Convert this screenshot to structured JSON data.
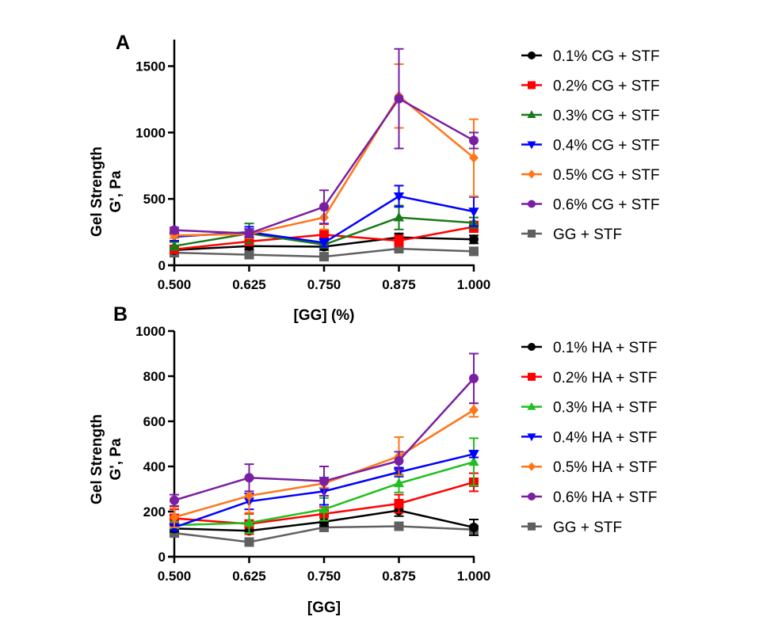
{
  "chart_data": [
    {
      "type": "line",
      "panel_label": "A",
      "title": "",
      "xlabel": "[GG] (%)",
      "ylabel_line1": "Gel Strength",
      "ylabel_line2": "G', Pa",
      "x": [
        0.5,
        0.625,
        0.75,
        0.875,
        1.0
      ],
      "x_tick_labels": [
        "0.500",
        "0.625",
        "0.750",
        "0.875",
        "1.000"
      ],
      "y_ticks": [
        0,
        500,
        1000,
        1500
      ],
      "ylim": [
        0,
        1700
      ],
      "legend_position": "right",
      "grid": false,
      "series": [
        {
          "name": "0.1% CG + STF",
          "color": "#000000",
          "marker": "circle",
          "values": [
            115,
            145,
            140,
            210,
            195
          ],
          "errors": [
            20,
            25,
            25,
            30,
            30
          ]
        },
        {
          "name": "0.2% CG + STF",
          "color": "#ff0000",
          "marker": "square",
          "values": [
            120,
            180,
            230,
            185,
            290
          ],
          "errors": [
            20,
            30,
            80,
            40,
            40
          ]
        },
        {
          "name": "0.3% CG + STF",
          "color": "#1a7a1a",
          "marker": "triangle-up",
          "values": [
            145,
            240,
            155,
            360,
            320
          ],
          "errors": [
            30,
            75,
            20,
            90,
            40
          ]
        },
        {
          "name": "0.4% CG + STF",
          "color": "#0000ff",
          "marker": "triangle-down",
          "values": [
            215,
            250,
            170,
            520,
            405
          ],
          "errors": [
            30,
            40,
            30,
            80,
            110
          ]
        },
        {
          "name": "0.5% CG + STF",
          "color": "#ff7518",
          "marker": "diamond",
          "values": [
            225,
            235,
            360,
            1275,
            810
          ],
          "errors": [
            20,
            30,
            90,
            240,
            290
          ]
        },
        {
          "name": "0.6% CG + STF",
          "color": "#7a1fa2",
          "marker": "circle",
          "values": [
            265,
            240,
            440,
            1255,
            940
          ],
          "errors": [
            20,
            30,
            125,
            375,
            60
          ]
        },
        {
          "name": "GG + STF",
          "color": "#606060",
          "marker": "square",
          "values": [
            95,
            80,
            65,
            125,
            105
          ],
          "errors": [
            15,
            15,
            10,
            20,
            15
          ]
        }
      ]
    },
    {
      "type": "line",
      "panel_label": "B",
      "title": "",
      "xlabel": "[GG]",
      "ylabel_line1": "Gel Strength",
      "ylabel_line2": "G', Pa",
      "x": [
        0.5,
        0.625,
        0.75,
        0.875,
        1.0
      ],
      "x_tick_labels": [
        "0.500",
        "0.625",
        "0.750",
        "0.875",
        "1.000"
      ],
      "y_ticks": [
        0,
        200,
        400,
        600,
        800,
        1000
      ],
      "ylim": [
        0,
        1000
      ],
      "legend_position": "right",
      "grid": false,
      "series": [
        {
          "name": "0.1% HA + STF",
          "color": "#000000",
          "marker": "circle",
          "values": [
            125,
            115,
            155,
            205,
            130
          ],
          "errors": [
            15,
            15,
            20,
            25,
            35
          ]
        },
        {
          "name": "0.2% HA + STF",
          "color": "#ff0000",
          "marker": "square",
          "values": [
            170,
            145,
            190,
            235,
            330
          ],
          "errors": [
            40,
            45,
            30,
            40,
            40
          ]
        },
        {
          "name": "0.3% HA + STF",
          "color": "#1fbf1f",
          "marker": "triangle-up",
          "values": [
            140,
            150,
            210,
            325,
            420
          ],
          "errors": [
            15,
            45,
            50,
            40,
            105
          ]
        },
        {
          "name": "0.4% HA + STF",
          "color": "#0000ff",
          "marker": "triangle-down",
          "values": [
            130,
            245,
            290,
            375,
            455
          ],
          "errors": [
            15,
            35,
            60,
            20,
            15
          ]
        },
        {
          "name": "0.5% HA + STF",
          "color": "#ff7518",
          "marker": "diamond",
          "values": [
            175,
            270,
            325,
            445,
            650
          ],
          "errors": [
            45,
            75,
            20,
            85,
            30
          ]
        },
        {
          "name": "0.6% HA + STF",
          "color": "#7a1fa2",
          "marker": "circle",
          "values": [
            250,
            350,
            335,
            425,
            790
          ],
          "errors": [
            25,
            60,
            65,
            40,
            110
          ]
        },
        {
          "name": "GG + STF",
          "color": "#606060",
          "marker": "square",
          "values": [
            105,
            65,
            130,
            135,
            120
          ],
          "errors": [
            15,
            10,
            15,
            15,
            15
          ]
        }
      ]
    }
  ]
}
